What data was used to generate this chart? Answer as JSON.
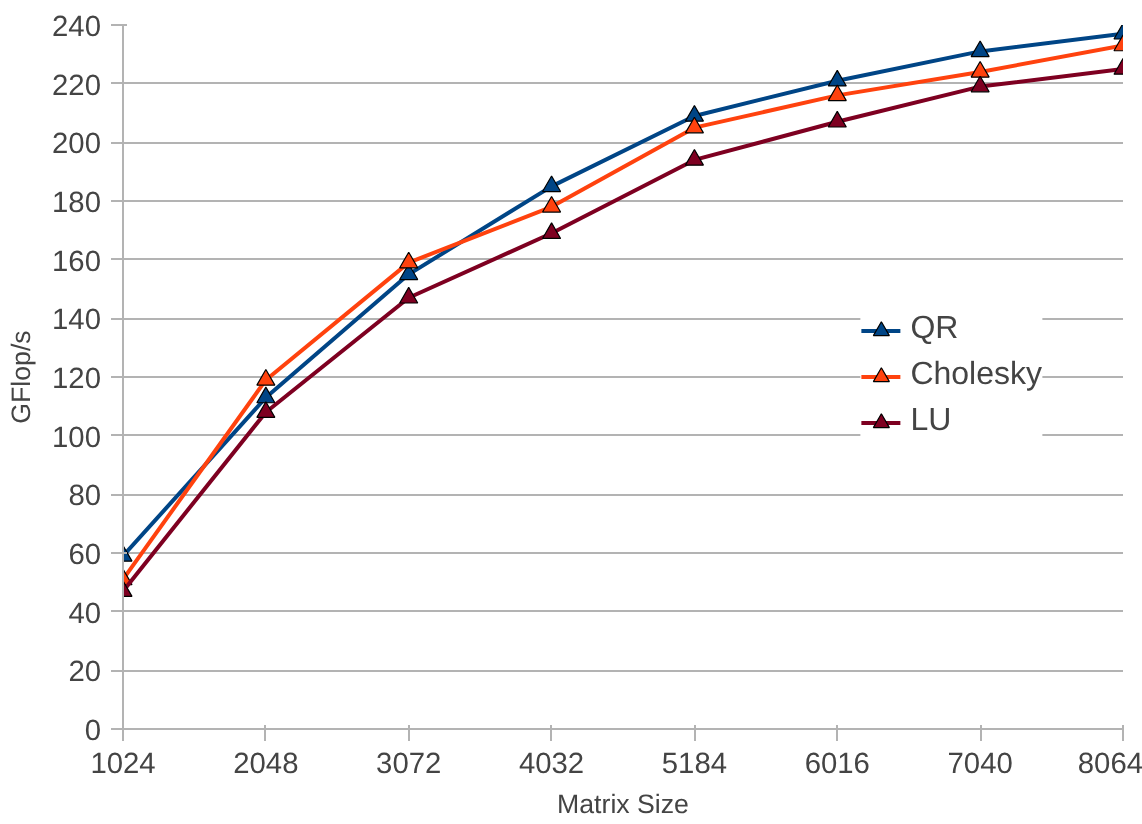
{
  "chart_data": {
    "type": "line",
    "xlabel": "Matrix Size",
    "ylabel": "GFlop/s",
    "categories": [
      "1024",
      "2048",
      "3072",
      "4032",
      "5184",
      "6016",
      "7040",
      "8064"
    ],
    "series": [
      {
        "name": "QR",
        "color": "#004586",
        "values": [
          59,
          113,
          155,
          185,
          209,
          221,
          231,
          237
        ]
      },
      {
        "name": "Cholesky",
        "color": "#ff420e",
        "values": [
          51,
          119,
          159,
          178,
          205,
          216,
          224,
          233
        ]
      },
      {
        "name": "LU",
        "color": "#7e0021",
        "values": [
          47,
          108,
          147,
          169,
          194,
          207,
          219,
          225
        ]
      }
    ],
    "ylim": [
      0,
      240
    ],
    "yticks": [
      0,
      20,
      40,
      60,
      80,
      100,
      120,
      140,
      160,
      180,
      200,
      220,
      240
    ],
    "grid": "y",
    "legend": "right",
    "marker": "triangle",
    "line_style": "solid"
  }
}
